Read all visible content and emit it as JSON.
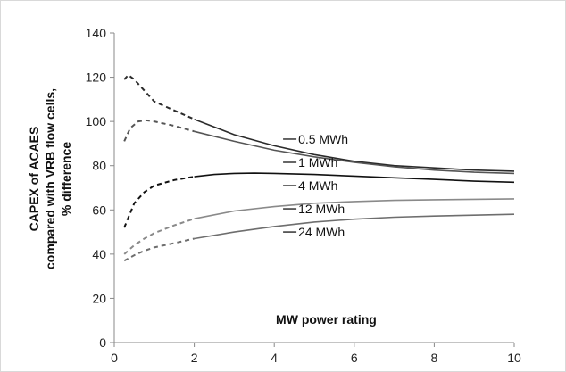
{
  "chart_data": {
    "type": "line",
    "title": "",
    "xlabel": "MW power rating",
    "ylabel_lines": [
      "CAPEX of ACAES",
      "compared with VRB flow cells,",
      "% difference"
    ],
    "xlim": [
      0,
      10
    ],
    "ylim": [
      0,
      140
    ],
    "x_ticks": [
      "0",
      "2",
      "4",
      "6",
      "8",
      "10"
    ],
    "y_ticks": [
      "0",
      "20",
      "40",
      "60",
      "80",
      "100",
      "120",
      "140"
    ],
    "grid": false,
    "legend": "inline labels",
    "dashed_until_x": 2,
    "series": [
      {
        "name": "0.5 MWh",
        "color": "#2b2b2b",
        "x": [
          0.25,
          0.35,
          0.5,
          0.75,
          1,
          1.5,
          2,
          3,
          4,
          5,
          6,
          7,
          8,
          9,
          10
        ],
        "y": [
          119,
          121,
          119,
          114,
          109,
          105,
          101,
          94,
          89,
          85,
          82,
          80,
          79,
          78,
          77.5
        ]
      },
      {
        "name": "1 MWh",
        "color": "#555555",
        "x": [
          0.25,
          0.4,
          0.6,
          0.8,
          1,
          1.5,
          2,
          3,
          4,
          5,
          6,
          7,
          8,
          9,
          10
        ],
        "y": [
          91,
          97,
          100,
          100.5,
          100,
          98,
          95.5,
          91,
          87,
          84,
          81.5,
          79.5,
          78,
          77,
          76.5
        ]
      },
      {
        "name": "4 MWh",
        "color": "#111111",
        "x": [
          0.25,
          0.5,
          0.75,
          1,
          1.5,
          2,
          2.5,
          3,
          3.5,
          4,
          5,
          6,
          7,
          8,
          9,
          10
        ],
        "y": [
          52,
          63,
          68,
          71,
          73.5,
          75,
          76,
          76.5,
          76.6,
          76.5,
          76,
          75.3,
          74.5,
          73.8,
          73,
          72.5
        ]
      },
      {
        "name": "12 MWh",
        "color": "#8a8a8a",
        "x": [
          0.25,
          0.5,
          0.75,
          1,
          1.5,
          2,
          3,
          4,
          5,
          6,
          7,
          8,
          9,
          10
        ],
        "y": [
          40,
          44,
          47,
          49.5,
          53,
          56,
          59.5,
          61.5,
          63,
          63.8,
          64.3,
          64.6,
          64.8,
          65
        ]
      },
      {
        "name": "24 MWh",
        "color": "#6e6e6e",
        "x": [
          0.25,
          0.5,
          0.75,
          1,
          1.5,
          2,
          3,
          4,
          5,
          6,
          7,
          8,
          9,
          10
        ],
        "y": [
          37,
          39.5,
          41.5,
          43,
          45,
          47,
          50,
          52.5,
          54.5,
          55.8,
          56.7,
          57.2,
          57.6,
          58
        ]
      }
    ],
    "label_positions": [
      {
        "series": "0.5 MWh",
        "x": 4.6,
        "y": 92
      },
      {
        "series": "1 MWh",
        "x": 4.6,
        "y": 81.5
      },
      {
        "series": "4 MWh",
        "x": 4.6,
        "y": 71
      },
      {
        "series": "12 MWh",
        "x": 4.6,
        "y": 60.5
      },
      {
        "series": "24 MWh",
        "x": 4.6,
        "y": 50
      }
    ]
  }
}
